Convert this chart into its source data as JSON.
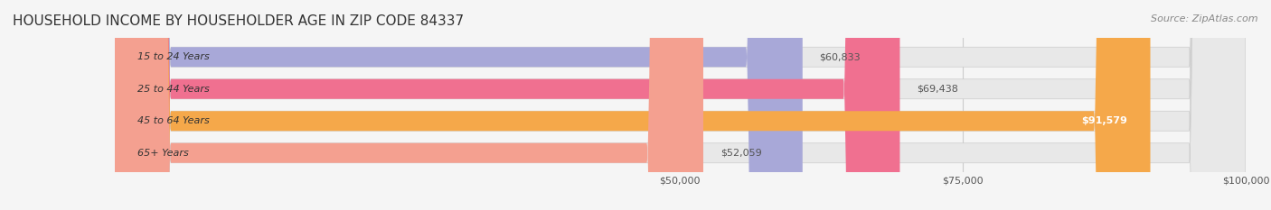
{
  "title": "HOUSEHOLD INCOME BY HOUSEHOLDER AGE IN ZIP CODE 84337",
  "source": "Source: ZipAtlas.com",
  "categories": [
    "15 to 24 Years",
    "25 to 44 Years",
    "45 to 64 Years",
    "65+ Years"
  ],
  "values": [
    60833,
    69438,
    91579,
    52059
  ],
  "bar_colors": [
    "#a8a8d8",
    "#f07090",
    "#f5a84a",
    "#f4a090"
  ],
  "bar_labels": [
    "$60,833",
    "$69,438",
    "$91,579",
    "$52,059"
  ],
  "label_colors": [
    "#555555",
    "#555555",
    "#ffffff",
    "#555555"
  ],
  "xlim": [
    0,
    100000
  ],
  "xticks": [
    50000,
    75000,
    100000
  ],
  "xtick_labels": [
    "$50,000",
    "$75,000",
    "$100,000"
  ],
  "background_color": "#f5f5f5",
  "bar_bg_color": "#e8e8e8",
  "title_fontsize": 11,
  "source_fontsize": 8
}
